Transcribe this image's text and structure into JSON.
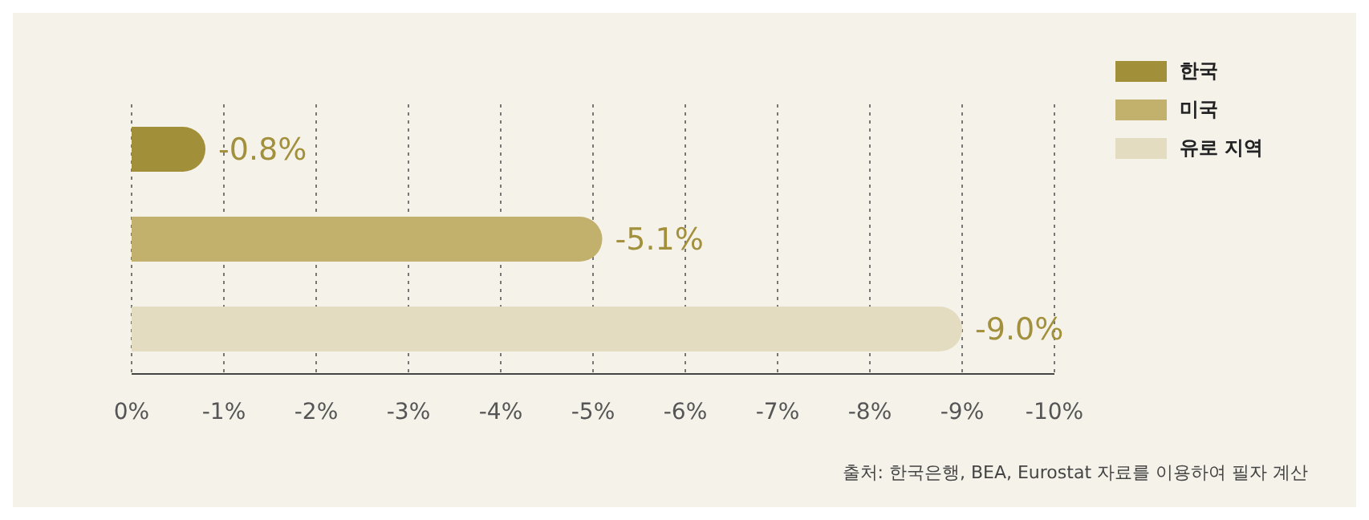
{
  "chart_data": {
    "type": "bar",
    "orientation": "horizontal",
    "stacked": true,
    "categories": [
      null,
      null,
      null
    ],
    "series": [
      {
        "name": "한국",
        "color": "#a28f39",
        "values": [
          -0.8,
          null,
          null
        ],
        "value_labels": [
          "-0.8%",
          null,
          null
        ]
      },
      {
        "name": "미국",
        "color": "#c2b06d",
        "values": [
          null,
          -5.1,
          null
        ],
        "value_labels": [
          null,
          "-5.1%",
          null
        ]
      },
      {
        "name": "유로 지역",
        "color": "#e3dcc0",
        "values": [
          null,
          null,
          -9.0
        ],
        "value_labels": [
          null,
          null,
          "-9.0%"
        ]
      }
    ],
    "xlim": [
      0,
      -10
    ],
    "xticks": [
      {
        "value": 0,
        "label": "0%"
      },
      {
        "value": -1,
        "label": "-1%"
      },
      {
        "value": -2,
        "label": "-2%"
      },
      {
        "value": -3,
        "label": "-3%"
      },
      {
        "value": -4,
        "label": "-4%"
      },
      {
        "value": -5,
        "label": "-5%"
      },
      {
        "value": -6,
        "label": "-6%"
      },
      {
        "value": -7,
        "label": "-7%"
      },
      {
        "value": -8,
        "label": "-8%"
      },
      {
        "value": -9,
        "label": "-9%"
      },
      {
        "value": -10,
        "label": "-10%"
      }
    ],
    "grid": "x",
    "legend": "top right",
    "annotations": [
      "출처: 한국은행, BEA, Eurostat 자료를 이용하여 필자 계산"
    ]
  }
}
